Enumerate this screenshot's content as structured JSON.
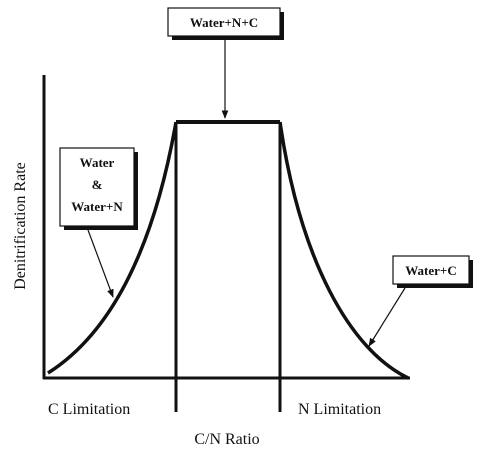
{
  "boxes": {
    "top": "Water+N+C",
    "left": [
      "Water",
      "&",
      "Water+N"
    ],
    "right": "Water+C"
  },
  "x_axis": {
    "label": "C/N Ratio",
    "regions": [
      "C Limitation",
      "N Limitation"
    ]
  },
  "y_axis": {
    "label": "Denitrification Rate"
  }
}
